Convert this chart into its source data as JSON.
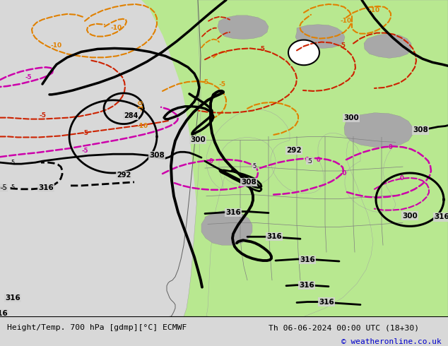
{
  "title_left": "Height/Temp. 700 hPa [gdmp][°C] ECMWF",
  "title_right": "Th 06-06-2024 00:00 UTC (18+30)",
  "credit": "© weatheronline.co.uk",
  "bg_color": "#d8d8d8",
  "land_green": "#b8e890",
  "land_gray": "#a8a8a8",
  "ocean_gray": "#d0d0d0",
  "black_contour": "#000000",
  "orange_temp": "#e08000",
  "red_temp": "#cc2200",
  "magenta_temp": "#cc00aa",
  "text_color": "#000000",
  "credit_color": "#0000cc",
  "figsize": [
    6.34,
    4.9
  ],
  "dpi": 100
}
